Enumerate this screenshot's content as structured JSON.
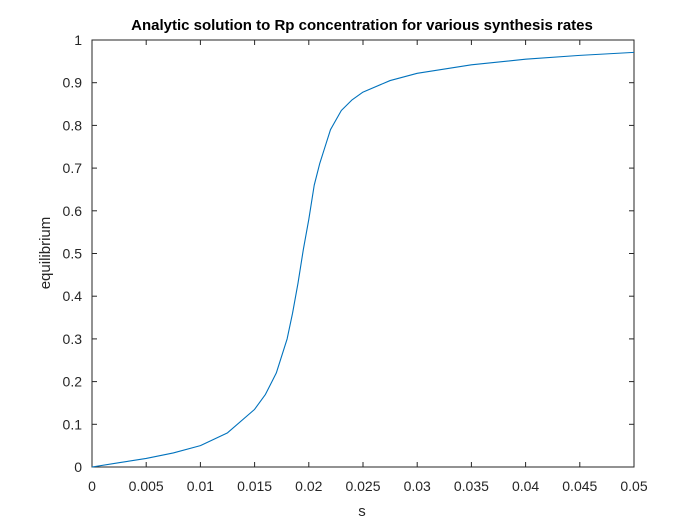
{
  "chart_data": {
    "type": "line",
    "title": "Analytic solution to Rp concentration for various synthesis rates",
    "xlabel": "s",
    "ylabel": "equilibrium",
    "xlim": [
      0,
      0.05
    ],
    "ylim": [
      0,
      1
    ],
    "xticks": [
      "0",
      "0.005",
      "0.01",
      "0.015",
      "0.02",
      "0.025",
      "0.03",
      "0.035",
      "0.04",
      "0.045",
      "0.05"
    ],
    "yticks": [
      "0",
      "0.1",
      "0.2",
      "0.3",
      "0.4",
      "0.5",
      "0.6",
      "0.7",
      "0.8",
      "0.9",
      "1"
    ],
    "grid": false,
    "series": [
      {
        "color": "#0072BD",
        "x": [
          0,
          0.0025,
          0.005,
          0.0075,
          0.01,
          0.0125,
          0.015,
          0.016,
          0.017,
          0.018,
          0.0185,
          0.019,
          0.0195,
          0.02,
          0.0205,
          0.021,
          0.0215,
          0.022,
          0.023,
          0.024,
          0.025,
          0.0275,
          0.03,
          0.035,
          0.04,
          0.045,
          0.05
        ],
        "y": [
          0,
          0.01,
          0.02,
          0.033,
          0.05,
          0.08,
          0.135,
          0.17,
          0.22,
          0.3,
          0.36,
          0.43,
          0.51,
          0.58,
          0.66,
          0.71,
          0.75,
          0.79,
          0.835,
          0.86,
          0.878,
          0.905,
          0.922,
          0.942,
          0.955,
          0.964,
          0.971
        ]
      }
    ]
  }
}
